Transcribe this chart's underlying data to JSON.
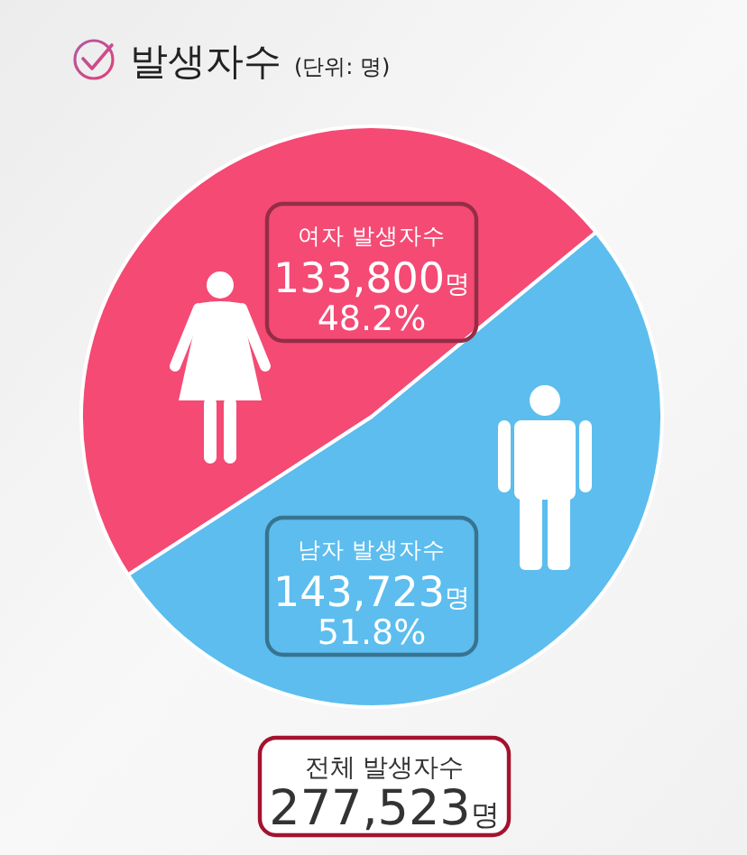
{
  "chart_data": {
    "type": "pie",
    "title": "발생자수",
    "subtitle": "(단위: 명)",
    "categories": [
      "여자 발생자수",
      "남자 발생자수"
    ],
    "values": [
      133800,
      143723
    ],
    "colors": [
      "#f44a74",
      "#5cbdee"
    ],
    "value_labels": [
      "133,800명\n48.2%",
      "143,723명\n51.8%"
    ],
    "annotations": [
      "전체 발생자수\n277,523명"
    ]
  }
}
